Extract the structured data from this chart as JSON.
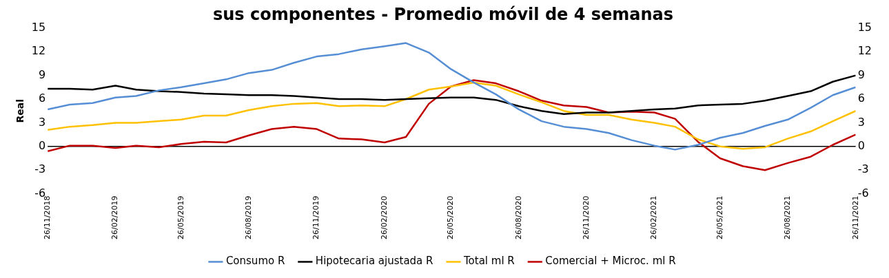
{
  "chart_data": {
    "type": "line",
    "title": "sus componentes - Promedio móvil de 4 semanas",
    "ylabel": "Real",
    "x": [
      "2018-11-26",
      "2018-12-26",
      "2019-01-26",
      "2019-02-26",
      "2019-03-26",
      "2019-04-26",
      "2019-05-26",
      "2019-06-26",
      "2019-07-26",
      "2019-08-26",
      "2019-09-26",
      "2019-10-26",
      "2019-11-26",
      "2019-12-26",
      "2020-01-26",
      "2020-02-26",
      "2020-03-26",
      "2020-04-26",
      "2020-05-26",
      "2020-06-26",
      "2020-07-26",
      "2020-08-26",
      "2020-09-26",
      "2020-10-26",
      "2020-11-26",
      "2020-12-26",
      "2021-01-26",
      "2021-02-26",
      "2021-03-26",
      "2021-04-26",
      "2021-05-26",
      "2021-06-26",
      "2021-07-26",
      "2021-08-26",
      "2021-09-26",
      "2021-10-26",
      "2021-11-26"
    ],
    "series": [
      {
        "name": "Consumo R",
        "color": "#558ed5",
        "values": [
          4.7,
          5.3,
          5.5,
          6.2,
          6.4,
          7.1,
          7.5,
          8.0,
          8.5,
          9.3,
          9.7,
          10.6,
          11.4,
          11.7,
          12.3,
          12.7,
          13.1,
          11.9,
          9.8,
          8.1,
          6.6,
          4.7,
          3.2,
          2.5,
          2.2,
          1.7,
          0.8,
          0.1,
          -0.4,
          0.2,
          1.1,
          1.7,
          2.6,
          3.4,
          4.9,
          6.5,
          7.5
        ]
      },
      {
        "name": "Hipotecaria ajustada R",
        "color": "#000000",
        "values": [
          7.3,
          7.3,
          7.2,
          7.7,
          7.2,
          7.0,
          6.9,
          6.7,
          6.6,
          6.5,
          6.5,
          6.4,
          6.2,
          6.0,
          6.0,
          5.9,
          6.0,
          6.1,
          6.2,
          6.2,
          5.9,
          5.1,
          4.5,
          4.1,
          4.3,
          4.3,
          4.5,
          4.7,
          4.8,
          5.2,
          5.3,
          5.4,
          5.8,
          6.4,
          7.0,
          8.2,
          9.0
        ]
      },
      {
        "name": "Total ml R",
        "color": "#ffc000",
        "values": [
          2.1,
          2.5,
          2.7,
          3.0,
          3.0,
          3.2,
          3.4,
          3.9,
          3.9,
          4.6,
          5.1,
          5.4,
          5.5,
          5.1,
          5.2,
          5.1,
          6.0,
          7.2,
          7.6,
          8.1,
          7.7,
          6.6,
          5.6,
          4.5,
          4.0,
          4.0,
          3.4,
          3.0,
          2.5,
          0.9,
          0.0,
          -0.3,
          -0.1,
          1.0,
          1.9,
          3.2,
          4.5
        ]
      },
      {
        "name": "Comercial + Microc. ml R",
        "color": "#c00000",
        "values": [
          -0.6,
          0.1,
          0.1,
          -0.2,
          0.1,
          -0.1,
          0.3,
          0.6,
          0.5,
          1.4,
          2.2,
          2.5,
          2.2,
          1.0,
          0.9,
          0.5,
          1.2,
          5.4,
          7.6,
          8.4,
          8.0,
          7.0,
          5.8,
          5.2,
          5.0,
          4.3,
          4.4,
          4.3,
          3.5,
          0.6,
          -1.5,
          -2.5,
          -3.0,
          -2.1,
          -1.3,
          0.2,
          1.5
        ]
      }
    ],
    "xlim": [
      "2018-11-26",
      "2021-11-26"
    ],
    "xticks": [
      {
        "value": "2018-11-26",
        "label": "26/11/2018"
      },
      {
        "value": "2019-02-26",
        "label": "26/02/2019"
      },
      {
        "value": "2019-05-26",
        "label": "26/05/2019"
      },
      {
        "value": "2019-08-26",
        "label": "26/08/2019"
      },
      {
        "value": "2019-11-26",
        "label": "26/11/2019"
      },
      {
        "value": "2020-02-26",
        "label": "26/02/2020"
      },
      {
        "value": "2020-05-26",
        "label": "26/05/2020"
      },
      {
        "value": "2020-08-26",
        "label": "26/08/2020"
      },
      {
        "value": "2020-11-26",
        "label": "26/11/2020"
      },
      {
        "value": "2021-02-26",
        "label": "26/02/2021"
      },
      {
        "value": "2021-05-26",
        "label": "26/05/2021"
      },
      {
        "value": "2021-08-26",
        "label": "26/08/2021"
      },
      {
        "value": "2021-11-26",
        "label": "26/11/2021"
      }
    ],
    "ylim": [
      -6,
      15
    ],
    "yticks": [
      -6,
      -3,
      0,
      3,
      6,
      9,
      12,
      15
    ],
    "y2lim": [
      -6,
      15
    ],
    "y2ticks": [
      -6,
      -3,
      0,
      3,
      6,
      9,
      12,
      15
    ],
    "ref_lines": [
      {
        "axis": "y",
        "value": 0,
        "color": "#000000"
      }
    ],
    "grid": false,
    "legend": "bottom",
    "marker": "none",
    "line_style": "solid"
  }
}
